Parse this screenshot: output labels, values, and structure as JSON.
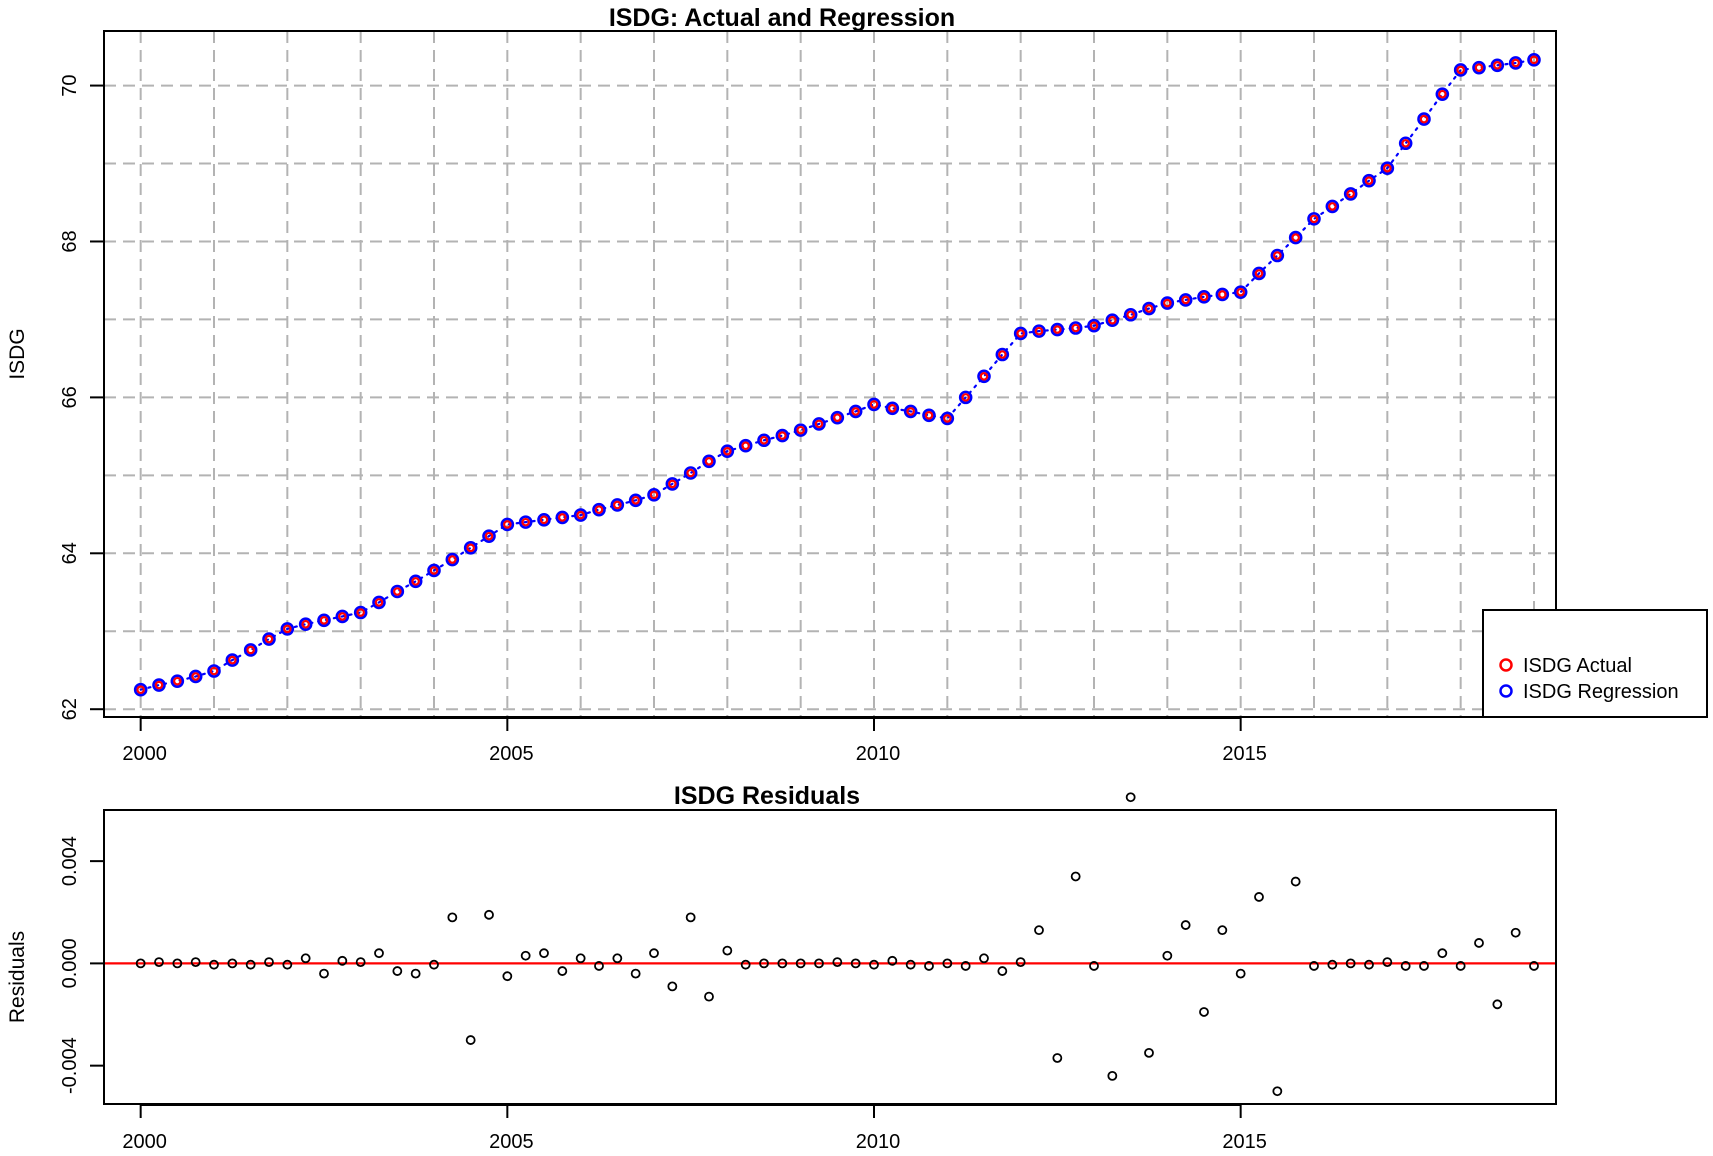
{
  "colors": {
    "actual": "#ff0000",
    "regression": "#0000ff",
    "grid": "#b3b3b3",
    "zero_line": "#ff0000",
    "residual_points": "#000000"
  },
  "chart_data": [
    {
      "type": "scatter",
      "title": "ISDG: Actual and Regression",
      "xlabel": "",
      "ylabel": "ISDG",
      "xlim": [
        1999.5,
        2019.3
      ],
      "ylim": [
        61.9,
        70.7
      ],
      "x_ticks": [
        2000,
        2005,
        2010,
        2015
      ],
      "x_tick_labels": [
        "2000",
        "2005",
        "2010",
        "2015"
      ],
      "y_ticks": [
        62,
        64,
        66,
        68,
        70
      ],
      "y_tick_labels": [
        "62",
        "64",
        "66",
        "68",
        "70"
      ],
      "grid": true,
      "grid_style": "dashed",
      "legend": {
        "placement": "bottom-right",
        "entries": [
          "ISDG Actual",
          "ISDG Regression"
        ]
      },
      "x": [
        2000.0,
        2000.25,
        2000.5,
        2000.75,
        2001.0,
        2001.25,
        2001.5,
        2001.75,
        2002.0,
        2002.25,
        2002.5,
        2002.75,
        2003.0,
        2003.25,
        2003.5,
        2003.75,
        2004.0,
        2004.25,
        2004.5,
        2004.75,
        2005.0,
        2005.25,
        2005.5,
        2005.75,
        2006.0,
        2006.25,
        2006.5,
        2006.75,
        2007.0,
        2007.25,
        2007.5,
        2007.75,
        2008.0,
        2008.25,
        2008.5,
        2008.75,
        2009.0,
        2009.25,
        2009.5,
        2009.75,
        2010.0,
        2010.25,
        2010.5,
        2010.75,
        2011.0,
        2011.25,
        2011.5,
        2011.75,
        2012.0,
        2012.25,
        2012.5,
        2012.75,
        2013.0,
        2013.25,
        2013.5,
        2013.75,
        2014.0,
        2014.25,
        2014.5,
        2014.75,
        2015.0,
        2015.25,
        2015.5,
        2015.75,
        2016.0,
        2016.25,
        2016.5,
        2016.75,
        2017.0,
        2017.25,
        2017.5,
        2017.75,
        2018.0,
        2018.25,
        2018.5,
        2018.75,
        2019.0
      ],
      "series": [
        {
          "name": "ISDG Actual",
          "style": "points",
          "values": [
            62.25,
            62.31,
            62.36,
            62.42,
            62.49,
            62.63,
            62.76,
            62.9,
            63.03,
            63.09,
            63.14,
            63.19,
            63.24,
            63.37,
            63.51,
            63.64,
            63.78,
            63.92,
            64.07,
            64.22,
            64.37,
            64.4,
            64.43,
            64.46,
            64.49,
            64.56,
            64.62,
            64.68,
            64.75,
            64.89,
            65.03,
            65.18,
            65.31,
            65.38,
            65.45,
            65.51,
            65.58,
            65.66,
            65.74,
            65.82,
            65.91,
            65.86,
            65.82,
            65.77,
            65.73,
            66.0,
            66.27,
            66.55,
            66.82,
            66.85,
            66.87,
            66.89,
            66.92,
            66.99,
            67.06,
            67.14,
            67.21,
            67.25,
            67.29,
            67.32,
            67.35,
            67.59,
            67.82,
            68.05,
            68.29,
            68.45,
            68.61,
            68.78,
            68.94,
            69.26,
            69.57,
            69.89,
            70.2,
            70.23,
            70.26,
            70.29,
            70.33
          ]
        },
        {
          "name": "ISDG Regression",
          "style": "points+dotted-line",
          "values": [
            62.25,
            62.31,
            62.36,
            62.42,
            62.49,
            62.63,
            62.76,
            62.9,
            63.03,
            63.09,
            63.14,
            63.19,
            63.24,
            63.37,
            63.51,
            63.64,
            63.78,
            63.92,
            64.07,
            64.22,
            64.37,
            64.4,
            64.43,
            64.46,
            64.49,
            64.56,
            64.62,
            64.68,
            64.75,
            64.89,
            65.03,
            65.18,
            65.31,
            65.38,
            65.45,
            65.51,
            65.58,
            65.66,
            65.74,
            65.82,
            65.91,
            65.86,
            65.82,
            65.77,
            65.73,
            66.0,
            66.27,
            66.55,
            66.82,
            66.85,
            66.87,
            66.89,
            66.92,
            66.99,
            67.06,
            67.14,
            67.21,
            67.25,
            67.29,
            67.32,
            67.35,
            67.59,
            67.82,
            68.05,
            68.29,
            68.45,
            68.61,
            68.78,
            68.94,
            69.26,
            69.57,
            69.89,
            70.2,
            70.23,
            70.26,
            70.29,
            70.33
          ]
        }
      ]
    },
    {
      "type": "scatter",
      "title": "ISDG Residuals",
      "xlabel": "",
      "ylabel": "Residuals",
      "xlim": [
        1999.5,
        2019.3
      ],
      "ylim": [
        -0.0055,
        0.006
      ],
      "x_ticks": [
        2000,
        2005,
        2010,
        2015
      ],
      "x_tick_labels": [
        "2000",
        "2005",
        "2010",
        "2015"
      ],
      "y_ticks": [
        -0.004,
        0.0,
        0.004
      ],
      "y_tick_labels": [
        "-0.004",
        "0.000",
        "0.004"
      ],
      "grid": false,
      "reference_line": 0,
      "x": [
        2000.0,
        2000.25,
        2000.5,
        2000.75,
        2001.0,
        2001.25,
        2001.5,
        2001.75,
        2002.0,
        2002.25,
        2002.5,
        2002.75,
        2003.0,
        2003.25,
        2003.5,
        2003.75,
        2004.0,
        2004.25,
        2004.5,
        2004.75,
        2005.0,
        2005.25,
        2005.5,
        2005.75,
        2006.0,
        2006.25,
        2006.5,
        2006.75,
        2007.0,
        2007.25,
        2007.5,
        2007.75,
        2008.0,
        2008.25,
        2008.5,
        2008.75,
        2009.0,
        2009.25,
        2009.5,
        2009.75,
        2010.0,
        2010.25,
        2010.5,
        2010.75,
        2011.0,
        2011.25,
        2011.5,
        2011.75,
        2012.0,
        2012.25,
        2012.5,
        2012.75,
        2013.0,
        2013.25,
        2013.5,
        2013.75,
        2014.0,
        2014.25,
        2014.5,
        2014.75,
        2015.0,
        2015.25,
        2015.5,
        2015.75,
        2016.0,
        2016.25,
        2016.5,
        2016.75,
        2017.0,
        2017.25,
        2017.5,
        2017.75,
        2018.0,
        2018.25,
        2018.5,
        2018.75,
        2019.0
      ],
      "series": [
        {
          "name": "Residuals",
          "style": "points",
          "values": [
            0.0,
            5e-05,
            0.0,
            5e-05,
            -5e-05,
            0.0,
            -5e-05,
            5e-05,
            -5e-05,
            0.0002,
            -0.0004,
            0.0001,
            5e-05,
            0.0004,
            -0.0003,
            -0.0004,
            -5e-05,
            0.0018,
            -0.003,
            0.0019,
            -0.0005,
            0.0003,
            0.0004,
            -0.0003,
            0.0002,
            -0.0001,
            0.0002,
            -0.0004,
            0.0004,
            -0.0009,
            0.0018,
            -0.0013,
            0.0005,
            -5e-05,
            0.0,
            0.0,
            0.0,
            0.0,
            5e-05,
            0.0,
            -5e-05,
            0.0001,
            -5e-05,
            -0.0001,
            0.0,
            -0.0001,
            0.0002,
            -0.0003,
            5e-05,
            0.0013,
            -0.0037,
            0.0034,
            -0.0001,
            -0.0044,
            0.0065,
            -0.0035,
            0.0003,
            0.0015,
            -0.0019,
            0.0013,
            -0.0004,
            0.0026,
            -0.005,
            0.0032,
            -0.0001,
            -5e-05,
            0.0,
            -5e-05,
            5e-05,
            -0.0001,
            -0.0001,
            0.0004,
            -0.0001,
            0.0008,
            -0.0016,
            0.0012,
            -0.0001
          ]
        }
      ]
    }
  ]
}
